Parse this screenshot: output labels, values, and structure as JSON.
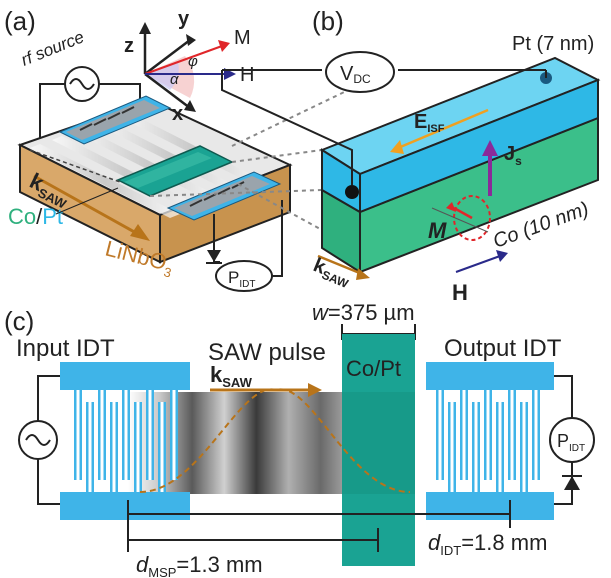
{
  "panel_a": {
    "letter": "(a)",
    "rf_source": "rf source",
    "k_saw": "k",
    "k_saw_sub": "SAW",
    "co_label": "Co",
    "slash": "/",
    "pt_label": "Pt",
    "substrate": "LiNbO",
    "substrate_sub": "3",
    "p_idt": "P",
    "p_idt_sub": "IDT",
    "axis_x": "x",
    "axis_y": "y",
    "axis_z": "z",
    "m": "M",
    "h": "H",
    "phi": "φ",
    "alpha": "α"
  },
  "panel_b": {
    "letter": "(b)",
    "v_dc": "V",
    "v_dc_sub": "DC",
    "pt_layer": "Pt (7 nm)",
    "co_layer": "Co (10 nm)",
    "e_isf": "E",
    "e_isf_sub": "ISF",
    "j_s": "J",
    "j_s_sub": "s",
    "m": "M",
    "k_saw": "k",
    "k_saw_sub": "SAW",
    "h": "H"
  },
  "panel_c": {
    "letter": "(c)",
    "input_idt": "Input IDT",
    "output_idt": "Output IDT",
    "saw_pulse": "SAW pulse",
    "k_saw": "k",
    "k_saw_sub": "SAW",
    "w_prefix": "w",
    "w_value": "=375 µm",
    "film": "Co/Pt",
    "d_msp_prefix": "d",
    "d_msp_sub": "MSP",
    "d_msp_value": "=1.3 mm",
    "d_idt_prefix": "d",
    "d_idt_sub": "IDT",
    "d_idt_value": "=1.8 mm",
    "p_idt": "P",
    "p_idt_sub": "IDT"
  },
  "colors": {
    "pt_blue": "#2eb8e6",
    "idt_blue": "#3fb4e8",
    "co_green": "#2fb07e",
    "film_teal": "#1aa393",
    "substrate": "#d9a86a",
    "arrow_brown": "#b8741a",
    "m_red": "#e0262a",
    "h_navy": "#2a2a8a",
    "js_purple": "#8a2a9a",
    "e_orange": "#f0a020"
  }
}
